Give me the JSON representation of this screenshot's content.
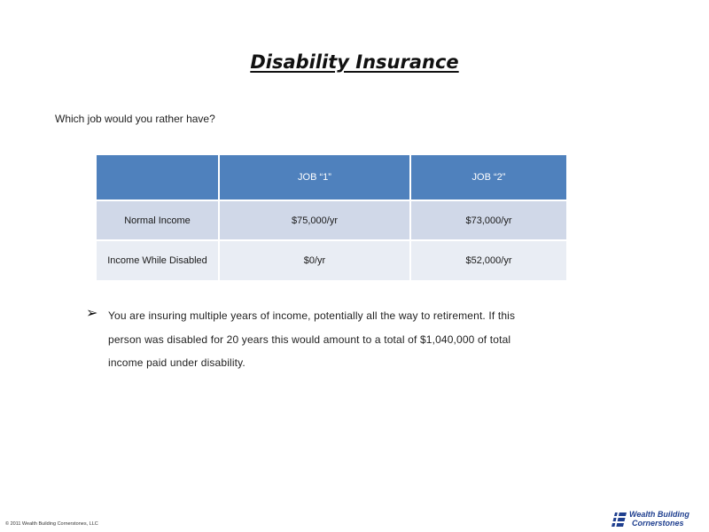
{
  "slide": {
    "title": "Disability Insurance",
    "question": "Which job would you rather have?",
    "table": {
      "headers": [
        "",
        "JOB “1”",
        "JOB “2”"
      ],
      "rows": [
        [
          "Normal Income",
          "$75,000/yr",
          "$73,000/yr"
        ],
        [
          "Income While Disabled",
          "$0/yr",
          "$52,000/yr"
        ]
      ]
    },
    "bullet": {
      "icon": "arrow-bullet-icon",
      "text": "You are insuring multiple years of income, potentially all the way to retirement. If this person was disabled for 20 years this would amount to a total of $1,040,000 of total income paid under disability."
    },
    "footer": {
      "copyright": "© 2011 Wealth Building Cornerstones, LLC",
      "logo_line1": "Wealth Building",
      "logo_line2": "Cornerstones",
      "logo_color": "#1f3f8f"
    },
    "colors": {
      "header_fill": "#4f81bd",
      "row1_fill": "#d0d8e8",
      "row2_fill": "#e9edf4"
    }
  }
}
